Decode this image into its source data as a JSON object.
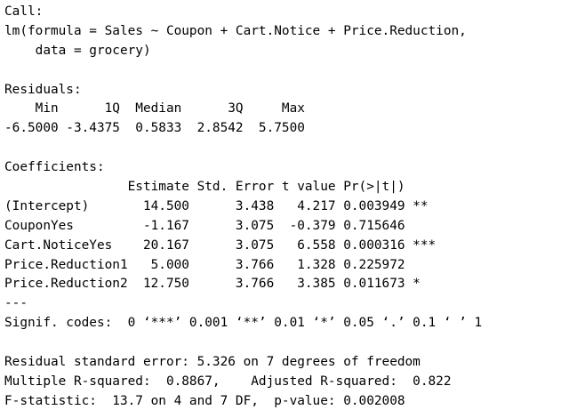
{
  "call": {
    "heading": "Call:",
    "lines": [
      "lm(formula = Sales ~ Coupon + Cart.Notice + Price.Reduction,",
      "    data = grocery)"
    ]
  },
  "residuals": {
    "heading": "Residuals:",
    "header_line": "    Min      1Q  Median      3Q     Max",
    "values_line": "-6.5000 -3.4375  0.5833  2.8542  5.7500",
    "labels": [
      "Min",
      "1Q",
      "Median",
      "3Q",
      "Max"
    ],
    "values": [
      "-6.5000",
      "-3.4375",
      "0.5833",
      "2.8542",
      "5.7500"
    ]
  },
  "coefficients": {
    "heading": "Coefficients:",
    "header_line": "                Estimate Std. Error t value Pr(>|t|)",
    "rows": [
      {
        "line": "(Intercept)       14.500      3.438   4.217 0.003949 **",
        "term": "(Intercept)",
        "estimate": "14.500",
        "std_error": "3.438",
        "t_value": "4.217",
        "p_value": "0.003949",
        "signif": "**"
      },
      {
        "line": "CouponYes         -1.167      3.075  -0.379 0.715646",
        "term": "CouponYes",
        "estimate": "-1.167",
        "std_error": "3.075",
        "t_value": "-0.379",
        "p_value": "0.715646",
        "signif": ""
      },
      {
        "line": "Cart.NoticeYes    20.167      3.075   6.558 0.000316 ***",
        "term": "Cart.NoticeYes",
        "estimate": "20.167",
        "std_error": "3.075",
        "t_value": "6.558",
        "p_value": "0.000316",
        "signif": "***"
      },
      {
        "line": "Price.Reduction1   5.000      3.766   1.328 0.225972",
        "term": "Price.Reduction1",
        "estimate": "5.000",
        "std_error": "3.766",
        "t_value": "1.328",
        "p_value": "0.225972",
        "signif": ""
      },
      {
        "line": "Price.Reduction2  12.750      3.766   3.385 0.011673 *",
        "term": "Price.Reduction2",
        "estimate": "12.750",
        "std_error": "3.766",
        "t_value": "3.385",
        "p_value": "0.011673",
        "signif": "*"
      }
    ],
    "separator": "---",
    "signif_codes": "Signif. codes:  0 ‘***’ 0.001 ‘**’ 0.01 ‘*’ 0.05 ‘.’ 0.1 ‘ ’ 1"
  },
  "summary": {
    "residual_se": "Residual standard error: 5.326 on 7 degrees of freedom",
    "r_squared": "Multiple R-squared:  0.8867,    Adjusted R-squared:  0.822",
    "f_statistic": "F-statistic:  13.7 on 4 and 7 DF,  p-value: 0.002008"
  }
}
